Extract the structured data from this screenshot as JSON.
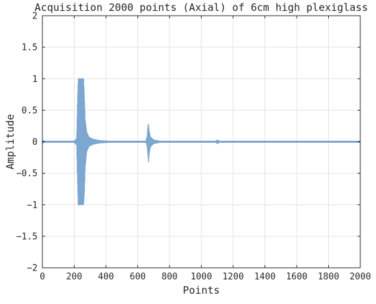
{
  "chart_data": {
    "type": "line",
    "title": "Acquisition 2000 points (Axial) of 6cm high plexiglass",
    "xlabel": "Points",
    "ylabel": "Amplitude",
    "xlim": [
      0,
      2000
    ],
    "ylim": [
      -2,
      2
    ],
    "x_ticks": [
      0,
      200,
      400,
      600,
      800,
      1000,
      1200,
      1400,
      1600,
      1800,
      2000
    ],
    "y_ticks": [
      -2,
      -1.5,
      -1,
      -0.5,
      0,
      0.5,
      1,
      1.5,
      2
    ],
    "x_tick_labels": [
      "0",
      "200",
      "400",
      "600",
      "800",
      "1000",
      "1200",
      "1400",
      "1600",
      "1800",
      "2000"
    ],
    "y_tick_labels": [
      "−2",
      "−1.5",
      "−1",
      "−0.5",
      "0",
      "0.5",
      "1",
      "1.5",
      "2"
    ],
    "grid": true,
    "series": [
      {
        "color": "#7BA7D1",
        "envelope": [
          [
            0,
            -0.03,
            0.03
          ],
          [
            10,
            -0.01,
            0.01
          ],
          [
            200,
            -0.01,
            0.01
          ],
          [
            215,
            -0.05,
            0.05
          ],
          [
            220,
            -0.6,
            0.6
          ],
          [
            225,
            -1.0,
            1.0
          ],
          [
            260,
            -1.0,
            1.0
          ],
          [
            265,
            -0.8,
            0.7
          ],
          [
            270,
            -0.4,
            0.35
          ],
          [
            280,
            -0.15,
            0.15
          ],
          [
            295,
            -0.07,
            0.07
          ],
          [
            320,
            -0.04,
            0.04
          ],
          [
            360,
            -0.02,
            0.02
          ],
          [
            420,
            -0.01,
            0.01
          ],
          [
            650,
            -0.01,
            0.01
          ],
          [
            658,
            -0.06,
            0.08
          ],
          [
            663,
            -0.2,
            0.25
          ],
          [
            668,
            -0.35,
            0.28
          ],
          [
            672,
            -0.2,
            0.18
          ],
          [
            680,
            -0.08,
            0.08
          ],
          [
            700,
            -0.03,
            0.03
          ],
          [
            740,
            -0.01,
            0.01
          ],
          [
            1090,
            -0.01,
            0.01
          ],
          [
            1100,
            -0.03,
            0.03
          ],
          [
            1115,
            -0.01,
            0.01
          ],
          [
            2000,
            -0.01,
            0.01
          ]
        ]
      }
    ]
  }
}
